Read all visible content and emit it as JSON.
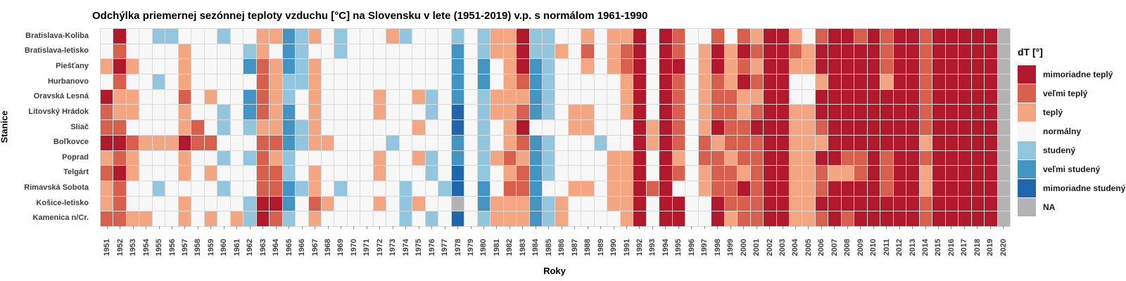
{
  "title": "Odchýlka priemernej sezónnej teploty vzduchu [°C] na Slovensku v lete (1951-2019) v.p. s normálom 1961-1990",
  "axes": {
    "x_label": "Roky",
    "y_label": "Stanice"
  },
  "legend": {
    "title": "dT [°]",
    "items": [
      {
        "code": "7",
        "label": "mimoriadne teplý",
        "color": "#B2182B"
      },
      {
        "code": "6",
        "label": "veľmi teplý",
        "color": "#D6604D"
      },
      {
        "code": "5",
        "label": "teplý",
        "color": "#F4A582"
      },
      {
        "code": "4",
        "label": "normálny",
        "color": "#F7F7F7"
      },
      {
        "code": "3",
        "label": "studený",
        "color": "#92C5DE"
      },
      {
        "code": "2",
        "label": "veľmi studený",
        "color": "#4393C3"
      },
      {
        "code": "1",
        "label": "mimoriadne studený",
        "color": "#2166AC"
      },
      {
        "code": "0",
        "label": "NA",
        "color": "#B3B3B3"
      }
    ]
  },
  "chart_data": {
    "type": "heatmap",
    "title": "Odchýlka priemernej sezónnej teploty vzduchu [°C] na Slovensku v lete (1951-2019) v.p. s normálom 1961-1990",
    "xlabel": "Roky",
    "ylabel": "Stanice",
    "x": [
      1951,
      1952,
      1953,
      1954,
      1955,
      1956,
      1957,
      1958,
      1959,
      1960,
      1961,
      1962,
      1963,
      1964,
      1965,
      1966,
      1967,
      1968,
      1969,
      1970,
      1971,
      1972,
      1973,
      1974,
      1975,
      1976,
      1977,
      1978,
      1979,
      1980,
      1981,
      1982,
      1983,
      1984,
      1985,
      1986,
      1987,
      1988,
      1989,
      1990,
      1991,
      1992,
      1993,
      1994,
      1995,
      1996,
      1997,
      1998,
      1999,
      2000,
      2001,
      2002,
      2003,
      2004,
      2005,
      2006,
      2007,
      2008,
      2009,
      2010,
      2011,
      2012,
      2013,
      2014,
      2015,
      2016,
      2017,
      2018,
      2019,
      2020
    ],
    "y": [
      "Bratislava-Koliba",
      "Bratislava-letisko",
      "Piešťany",
      "Hurbanovo",
      "Oravská Lesná",
      "Litovský Hrádok",
      "Sliač",
      "Boľkovce",
      "Poprad",
      "Telgárt",
      "Rimavská Sobota",
      "Košice-letisko",
      "Kamenica n/Cr."
    ],
    "value_labels": {
      "7": "mimoriadne teplý",
      "6": "veľmi teplý",
      "5": "teplý",
      "4": "normálny",
      "3": "studený",
      "2": "veľmi studený",
      "1": "mimoriadne studený",
      "0": "NA"
    },
    "palette": {
      "7": "#B2182B",
      "6": "#D6604D",
      "5": "#F4A582",
      "4": "#F7F7F7",
      "3": "#92C5DE",
      "2": "#4393C3",
      "1": "#2166AC",
      "0": "#B3B3B3"
    },
    "grid": [
      "4744334443445523543444534443435573344545574764464657754677676776777770",
      "4644445444435423443444444442435573354645674764575767765777776776777770",
      "5754445444426523544444444442424572344545674774575657755777776776777770",
      "4644345444446533544444444442424562344444574764565767744577775776777770",
      "7554446454426534544445445342435552344444574764566557744777777776777770",
      "6554445443426524544445444341435562345544574764566567755777777776777770",
      "6644445643435523544444445441434574445544475764576677755677777776777770",
      "7765557664446623554444344442434562344434475764656667755577777775777770",
      "5654445443436534444445445342435652344445574754665667755776676776777770",
      "6754445454446634544445444341434562344445574764566567755655676775777770",
      "5644344443446623543444434431424662445545576744566767755677776775777770",
      "5644445444437724654445435440425552354445574774476667755777777776777770",
      "6655445454537634544444434341435552354444574774475667755676777776777770"
    ],
    "layout": {
      "grid_lines": "#d9d9d9",
      "legend_position": "right",
      "x_tick_rotation": 90
    }
  }
}
